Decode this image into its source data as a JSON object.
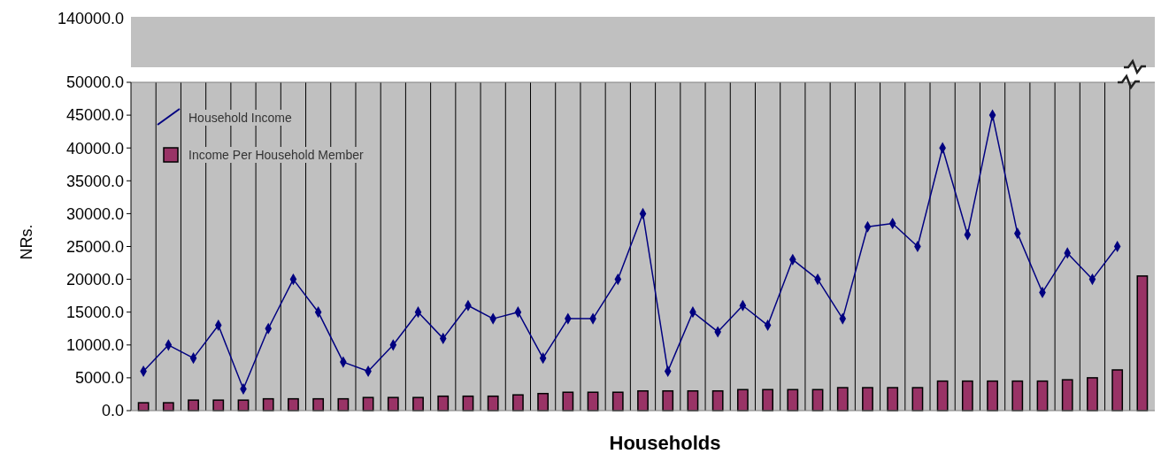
{
  "chart_data": {
    "type": "bar",
    "xlabel": "Households",
    "ylabel": "NRs.",
    "annotations": [
      "140000.0"
    ],
    "categories": [
      null,
      null,
      null,
      null,
      null,
      null,
      null,
      null,
      null,
      null,
      null,
      null,
      null,
      null,
      null,
      null,
      null,
      null,
      null,
      null,
      null,
      null,
      null,
      null,
      null,
      null,
      null,
      null,
      null,
      null,
      null,
      null,
      null,
      null,
      null,
      null,
      null,
      null,
      null,
      null,
      null
    ],
    "ylim": [
      0,
      50000
    ],
    "yticks": [
      {
        "value": 0,
        "label": "0.0"
      },
      {
        "value": 5000,
        "label": "5000.0"
      },
      {
        "value": 10000,
        "label": "10000.0"
      },
      {
        "value": 15000,
        "label": "15000.0"
      },
      {
        "value": 20000,
        "label": "20000.0"
      },
      {
        "value": 25000,
        "label": "25000.0"
      },
      {
        "value": 30000,
        "label": "30000.0"
      },
      {
        "value": 35000,
        "label": "35000.0"
      },
      {
        "value": 40000,
        "label": "40000.0"
      },
      {
        "value": 45000,
        "label": "45000.0"
      },
      {
        "value": 50000,
        "label": "50000.0"
      }
    ],
    "grid": "x",
    "legend": "top left",
    "marker": "diamond",
    "series": [
      {
        "type": "line",
        "name": "Household Income",
        "color": "#000080",
        "values": [
          6000,
          10000,
          8000,
          13000,
          3300,
          12500,
          20000,
          15000,
          7400,
          6000,
          10000,
          15000,
          11000,
          16000,
          14000,
          15000,
          8000,
          14000,
          14000,
          20000,
          30000,
          6000,
          15000,
          12000,
          16000,
          13000,
          23000,
          20000,
          14000,
          28000,
          28500,
          25000,
          40000,
          26800,
          45000,
          27000,
          18000,
          24000,
          20000,
          25000,
          null
        ]
      },
      {
        "name": "Income Per Household Member",
        "color": "#993366",
        "values": [
          1200,
          1200,
          1600,
          1600,
          1600,
          1800,
          1800,
          1800,
          1800,
          2000,
          2000,
          2000,
          2200,
          2200,
          2200,
          2400,
          2600,
          2800,
          2800,
          2800,
          3000,
          3000,
          3000,
          3000,
          3200,
          3200,
          3200,
          3200,
          3500,
          3500,
          3500,
          3500,
          4500,
          4500,
          4500,
          4500,
          4500,
          4700,
          5000,
          6200,
          20500
        ]
      }
    ]
  }
}
